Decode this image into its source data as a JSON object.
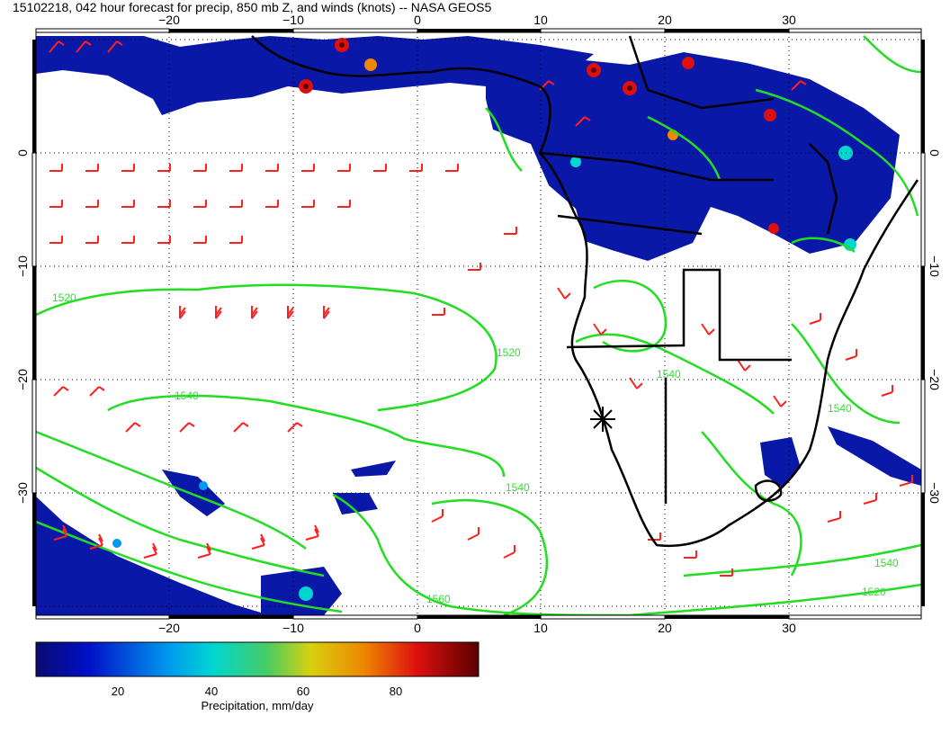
{
  "title": "15102218, 042 hour forecast for precip, 850 mb Z, and winds (knots) -- NASA GEOS5",
  "lon_ticks": [
    "−20",
    "−10",
    "0",
    "10",
    "20",
    "30"
  ],
  "lat_ticks": [
    "0",
    "−10",
    "−20",
    "−30"
  ],
  "contour_labels": [
    "1520",
    "1540",
    "1520",
    "1540",
    "1540",
    "1540",
    "1520",
    "1540",
    "1560"
  ],
  "colorbar": {
    "ticks": [
      "20",
      "40",
      "60",
      "80"
    ],
    "label": "Precipitation, mm/day"
  },
  "colors": {
    "contour": "#22dd22",
    "barb": "#ff2020",
    "coast": "#000000"
  }
}
